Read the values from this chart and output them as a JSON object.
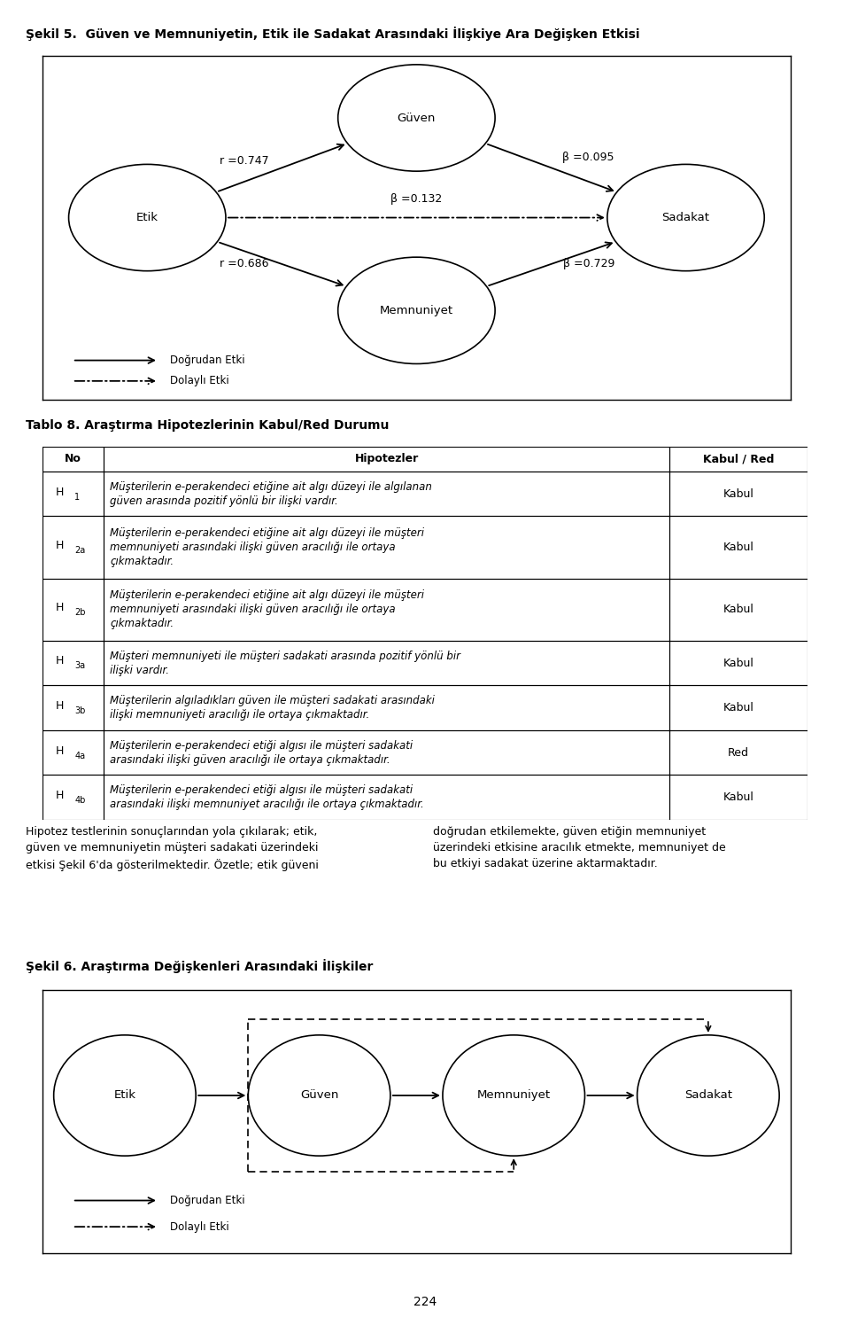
{
  "title1": "Şekil 5.  Güven ve Memnuniyetin, Etik ile Sadakat Arasındaki İlişkiye Ara Değişken Etkisi",
  "fig5_r1": "r =0.747",
  "fig5_r2": "r =0.686",
  "fig5_b1": "β =0.095",
  "fig5_b2": "β =0.132",
  "fig5_b3": "β =0.729",
  "fig5_legend_direct": "Doğrudan Etki",
  "fig5_legend_indirect": "Dolaylı Etki",
  "table_title": "Tablo 8. Araştırma Hipotezlerinin Kabul/Red Durumu",
  "table_headers": [
    "No",
    "Hipotezler",
    "Kabul / Red"
  ],
  "table_rows": [
    [
      "H1",
      "Müşterilerin e-perakendeci etiğine ait algı düzeyi ile algılanan\ngüven arasında pozitif yönlü bir ilişki vardır.",
      "Kabul"
    ],
    [
      "H2a",
      "Müşterilerin e-perakendeci etiğine ait algı düzeyi ile müşteri\nmemnuniyeti arasındaki ilişki güven aracılığı ile ortaya\nçıkmaktadır.",
      "Kabul"
    ],
    [
      "H2b",
      "Müşterilerin e-perakendeci etiğine ait algı düzeyi ile müşteri\nmemnuniyeti arasındaki ilişki güven aracılığı ile ortaya\nçıkmaktadır.",
      "Kabul"
    ],
    [
      "H3a",
      "Müşteri memnuniyeti ile müşteri sadakati arasında pozitif yönlü bir\nilişki vardır.",
      "Kabul"
    ],
    [
      "H3b",
      "Müşterilerin algıladıkları güven ile müşteri sadakati arasındaki\nilişki memnuniyeti aracılığı ile ortaya çıkmaktadır.",
      "Kabul"
    ],
    [
      "H4a",
      "Müşterilerin e-perakendeci etiği algısı ile müşteri sadakati\narasındaki ilişki güven aracılığı ile ortaya çıkmaktadır.",
      "Red"
    ],
    [
      "H4b",
      "Müşterilerin e-perakendeci etiği algısı ile müşteri sadakati\narasındaki ilişki memnuniyet aracılığı ile ortaya çıkmaktadır.",
      "Kabul"
    ]
  ],
  "subscripts": [
    [
      "H",
      "1",
      ""
    ],
    [
      "H",
      "2",
      "a"
    ],
    [
      "H",
      "2",
      "b"
    ],
    [
      "H",
      "3",
      "a"
    ],
    [
      "H",
      "3",
      "b"
    ],
    [
      "H",
      "4",
      "a"
    ],
    [
      "H",
      "4",
      "b"
    ]
  ],
  "para_left": "Hipotez testlerinin sonuçlarından yola çıkılarak; etik,\ngüven ve memnuniyetin müşteri sadakati üzerindeki\netkisi Şekil 6'da gösterilmektedir. Özetle; etik güveni",
  "para_right": "doğrudan etkilemekte, güven etiğin memnuniyet\nüzerindeki etkisine aracılık etmekte, memnuniyet de\nbu etkiyi sadakat üzerine aktarmaktadır.",
  "title2": "Şekil 6. Araştırma Değişkenleri Arasındaki İlişkiler",
  "page_num": "224"
}
